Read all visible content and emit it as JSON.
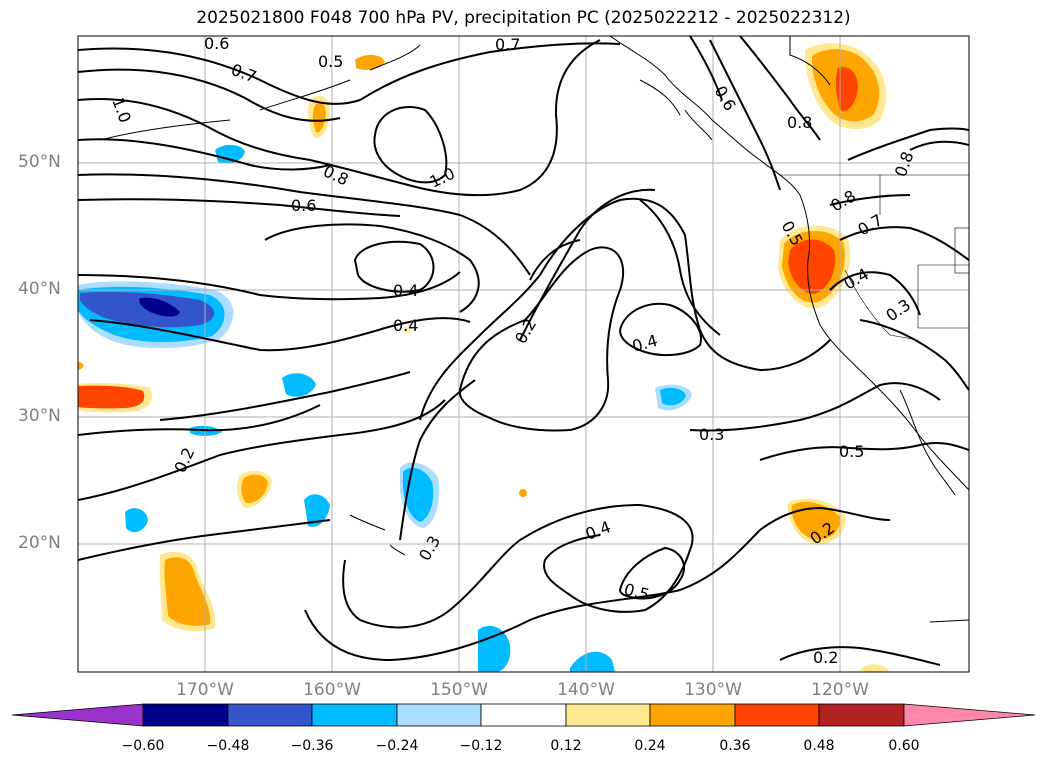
{
  "title": "2025021800 F048 700 hPa PV, precipitation PC (2025022212 - 2025022312)",
  "lat_labels": [
    "50°N",
    "40°N",
    "30°N",
    "20°N"
  ],
  "lon_labels": [
    "170°W",
    "160°W",
    "150°W",
    "140°W",
    "130°W",
    "120°W"
  ],
  "colorbar": {
    "colors": [
      "#9933cc",
      "#00008b",
      "#3355cc",
      "#00bbff",
      "#aaddff",
      "#ffffff",
      "#ffe890",
      "#ffa500",
      "#ff4400",
      "#b22222",
      "#ff88aa"
    ],
    "tick_labels": [
      "−0.60",
      "−0.48",
      "−0.36",
      "−0.24",
      "−0.12",
      "0.12",
      "0.24",
      "0.36",
      "0.48",
      "0.60"
    ]
  },
  "contour_labels": [
    {
      "text": "0.6"
    },
    {
      "text": "0.7"
    },
    {
      "text": "0.5"
    },
    {
      "text": "0.7"
    },
    {
      "text": "1.0"
    },
    {
      "text": "0.8"
    },
    {
      "text": "1.0"
    },
    {
      "text": "0.6"
    },
    {
      "text": "0.6"
    },
    {
      "text": "0.8"
    },
    {
      "text": "0.8"
    },
    {
      "text": "0.8"
    },
    {
      "text": "0.7"
    },
    {
      "text": "0.5"
    },
    {
      "text": "0.4"
    },
    {
      "text": "0.3"
    },
    {
      "text": "0.4"
    },
    {
      "text": "0.4"
    },
    {
      "text": "0.2"
    },
    {
      "text": "0.4"
    },
    {
      "text": "0.3"
    },
    {
      "text": "0.5"
    },
    {
      "text": "0.2"
    },
    {
      "text": "0.4"
    },
    {
      "text": "0.5"
    },
    {
      "text": "0.3"
    },
    {
      "text": "0.2"
    },
    {
      "text": "0.2"
    }
  ]
}
